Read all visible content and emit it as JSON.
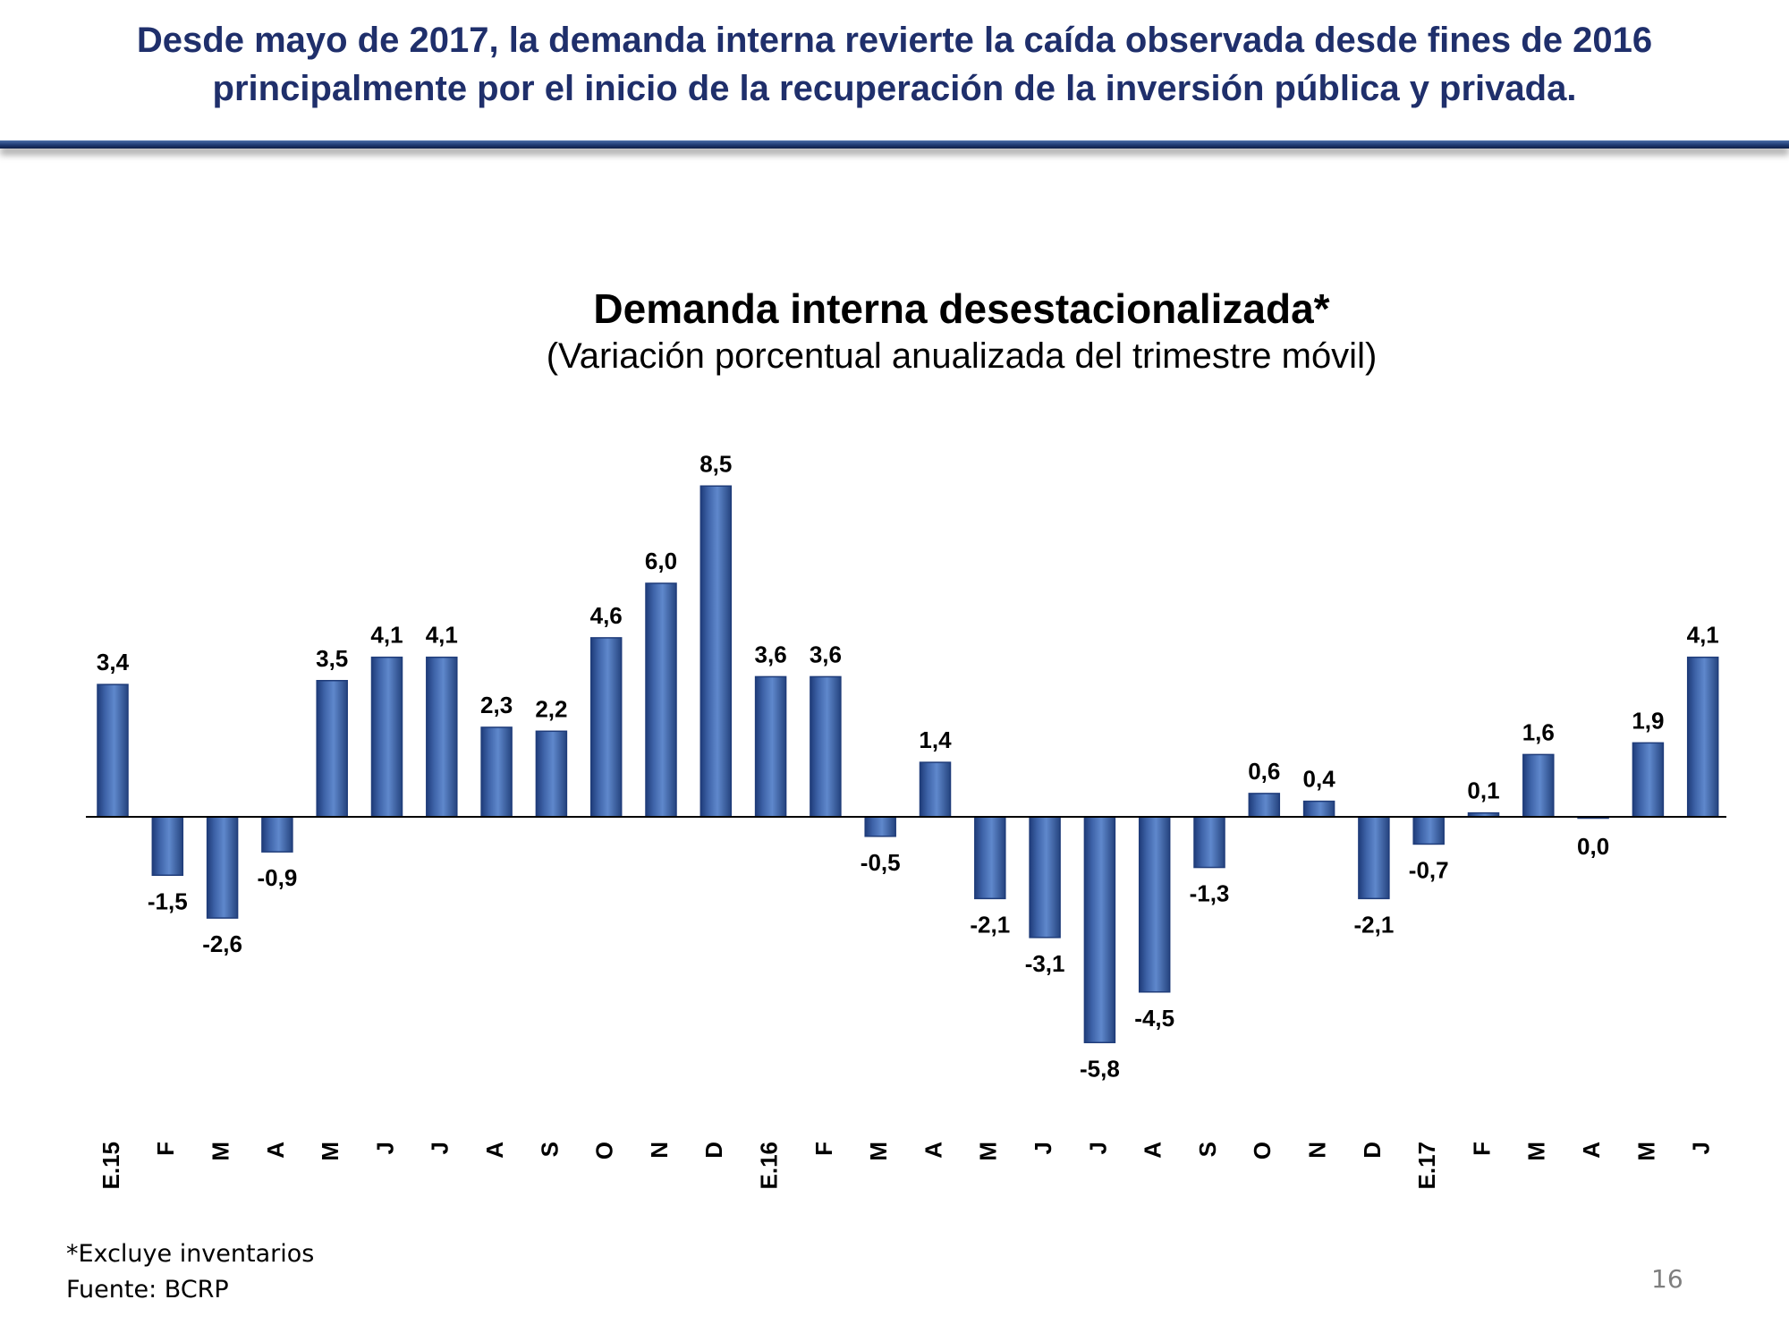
{
  "slide": {
    "headline_line1": "Desde mayo de 2017, la demanda interna revierte la caída observada desde fines de 2016",
    "headline_line2": "principalmente por el inicio de la recuperación de la inversión pública y privada.",
    "footnote": "*Excluye inventarios",
    "source": "Fuente: BCRP",
    "page_number": "16"
  },
  "colors": {
    "headline": "#1f2f6b",
    "bar_fill": "#4472c4",
    "bar_dark": "#1f3c7a",
    "rule": "#1f3b73"
  },
  "chart_data": {
    "type": "bar",
    "title": "Demanda interna desestacionalizada*",
    "subtitle": "(Variación porcentual anualizada del trimestre móvil)",
    "xlabel": "",
    "ylabel": "",
    "ylim": [
      -6.5,
      9.5
    ],
    "grid": false,
    "legend": "none",
    "categories": [
      "E.15",
      "F",
      "M",
      "A",
      "M",
      "J",
      "J",
      "A",
      "S",
      "O",
      "N",
      "D",
      "E.16",
      "F",
      "M",
      "A",
      "M",
      "J",
      "J",
      "A",
      "S",
      "O",
      "N",
      "D",
      "E.17",
      "F",
      "M",
      "A",
      "M",
      "J"
    ],
    "values": [
      3.4,
      -1.5,
      -2.6,
      -0.9,
      3.5,
      4.1,
      4.1,
      2.3,
      2.2,
      4.6,
      6.0,
      8.5,
      3.6,
      3.6,
      -0.5,
      1.4,
      -2.1,
      -3.1,
      -5.8,
      -4.5,
      -1.3,
      0.6,
      0.4,
      -2.1,
      -0.7,
      0.1,
      1.6,
      0.0,
      1.9,
      4.1
    ],
    "value_labels": [
      "3,4",
      "-1,5",
      "-2,6",
      "-0,9",
      "3,5",
      "4,1",
      "4,1",
      "2,3",
      "2,2",
      "4,6",
      "6,0",
      "8,5",
      "3,6",
      "3,6",
      "-0,5",
      "1,4",
      "-2,1",
      "-3,1",
      "-5,8",
      "-4,5",
      "-1,3",
      "0,6",
      "0,4",
      "-2,1",
      "-0,7",
      "0,1",
      "1,6",
      "0,0",
      "1,9",
      "4,1"
    ]
  }
}
